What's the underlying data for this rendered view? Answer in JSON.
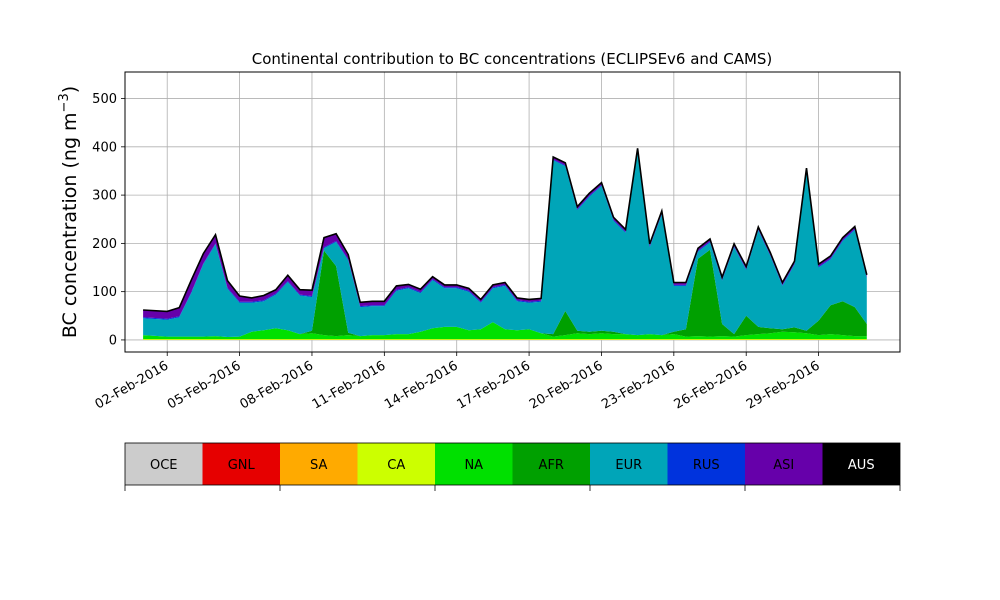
{
  "chart_data": {
    "type": "area",
    "stacked": true,
    "title": "Continental contribution to BC concentrations (ECLIPSEv6 and CAMS)",
    "ylabel": "BC concentration (ng m⁻³)",
    "ylabel_main": "BC concentration (ng m",
    "ylabel_sup": "−3",
    "ylabel_end": ")",
    "xlabel": "",
    "grid": true,
    "xlim": [
      "2016-01-31T06:00",
      "2016-03-03T09:00"
    ],
    "ylim": [
      -25,
      555
    ],
    "x_ticks": [
      "2016-02-02",
      "2016-02-05",
      "2016-02-08",
      "2016-02-11",
      "2016-02-14",
      "2016-02-17",
      "2016-02-20",
      "2016-02-23",
      "2016-02-26",
      "2016-02-29"
    ],
    "x_tick_labels": [
      "02-Feb-2016",
      "05-Feb-2016",
      "08-Feb-2016",
      "11-Feb-2016",
      "14-Feb-2016",
      "17-Feb-2016",
      "20-Feb-2016",
      "23-Feb-2016",
      "26-Feb-2016",
      "29-Feb-2016"
    ],
    "y_ticks": [
      0,
      100,
      200,
      300,
      400,
      500
    ],
    "x": [
      "2016-02-01T00:00",
      "2016-02-02T00:00",
      "2016-02-02T12:00",
      "2016-02-03T00:00",
      "2016-02-03T12:00",
      "2016-02-04T00:00",
      "2016-02-04T12:00",
      "2016-02-05T00:00",
      "2016-02-05T12:00",
      "2016-02-06T00:00",
      "2016-02-06T12:00",
      "2016-02-07T00:00",
      "2016-02-07T12:00",
      "2016-02-08T00:00",
      "2016-02-08T12:00",
      "2016-02-09T00:00",
      "2016-02-09T12:00",
      "2016-02-10T00:00",
      "2016-02-10T12:00",
      "2016-02-11T00:00",
      "2016-02-11T12:00",
      "2016-02-12T00:00",
      "2016-02-12T12:00",
      "2016-02-13T00:00",
      "2016-02-13T12:00",
      "2016-02-14T00:00",
      "2016-02-14T12:00",
      "2016-02-15T00:00",
      "2016-02-15T12:00",
      "2016-02-16T00:00",
      "2016-02-16T12:00",
      "2016-02-17T00:00",
      "2016-02-17T12:00",
      "2016-02-18T00:00",
      "2016-02-18T12:00",
      "2016-02-19T00:00",
      "2016-02-19T12:00",
      "2016-02-20T00:00",
      "2016-02-20T12:00",
      "2016-02-21T00:00",
      "2016-02-21T12:00",
      "2016-02-22T00:00",
      "2016-02-22T12:00",
      "2016-02-23T00:00",
      "2016-02-23T12:00",
      "2016-02-24T00:00",
      "2016-02-24T12:00",
      "2016-02-25T00:00",
      "2016-02-25T12:00",
      "2016-02-26T00:00",
      "2016-02-26T12:00",
      "2016-02-27T00:00",
      "2016-02-27T12:00",
      "2016-02-28T00:00",
      "2016-02-28T12:00",
      "2016-02-29T00:00",
      "2016-02-29T12:00",
      "2016-03-01T00:00",
      "2016-03-01T12:00",
      "2016-03-02T00:00"
    ],
    "series": [
      {
        "name": "OCE",
        "color": "#cccccc",
        "values": [
          0,
          0,
          0,
          0,
          0,
          0,
          0,
          0,
          0,
          0,
          0,
          0,
          0,
          0,
          0,
          0,
          0,
          0,
          0,
          0,
          0,
          0,
          0,
          0,
          0,
          0,
          0,
          0,
          0,
          0,
          0,
          0,
          0,
          0,
          0,
          0,
          0,
          0,
          0,
          0,
          0,
          0,
          0,
          0,
          0,
          0,
          0,
          0,
          0,
          0,
          0,
          0,
          0,
          0,
          0,
          0,
          0,
          0,
          0,
          0
        ]
      },
      {
        "name": "GNL",
        "color": "#e60000",
        "values": [
          0,
          0,
          0,
          0,
          0,
          0,
          0,
          0,
          0,
          0,
          0,
          0,
          0,
          0,
          0,
          0,
          0,
          0,
          0,
          0,
          0,
          0,
          0,
          0,
          0,
          0,
          0,
          0,
          0,
          0,
          0,
          0,
          0,
          0,
          0,
          0,
          0,
          0,
          0,
          0,
          0,
          0,
          0,
          0,
          0,
          0,
          0,
          0,
          0,
          0,
          0,
          0,
          0,
          0,
          0,
          0,
          0,
          0,
          0,
          0
        ]
      },
      {
        "name": "SA",
        "color": "#ffaa00",
        "values": [
          0,
          0,
          0,
          0,
          0,
          0,
          0,
          0,
          0,
          0,
          0,
          0,
          0,
          0,
          0,
          0,
          0,
          0,
          0,
          0,
          0,
          0,
          0,
          0,
          0,
          0,
          0,
          0,
          0,
          0,
          0,
          0,
          0,
          0,
          0,
          0,
          0,
          0,
          0,
          0,
          0,
          0,
          0,
          0,
          0,
          0,
          0,
          0,
          0,
          0,
          0,
          0,
          0,
          0,
          0,
          0,
          0,
          0,
          0,
          0
        ]
      },
      {
        "name": "CA",
        "color": "#ccff00",
        "values": [
          2,
          2,
          2,
          2,
          2,
          2,
          2,
          2,
          2,
          2,
          2,
          2,
          2,
          2,
          2,
          2,
          2,
          2,
          2,
          2,
          2,
          2,
          2,
          2,
          2,
          2,
          2,
          2,
          2,
          2,
          2,
          2,
          2,
          2,
          2,
          2,
          2,
          2,
          2,
          2,
          2,
          2,
          2,
          2,
          2,
          2,
          2,
          2,
          2,
          2,
          2,
          2,
          2,
          2,
          2,
          2,
          2,
          2,
          2,
          2
        ]
      },
      {
        "name": "NA",
        "color": "#00e000",
        "values": [
          8,
          5,
          5,
          5,
          5,
          6,
          4,
          5,
          15,
          18,
          22,
          18,
          10,
          12,
          8,
          6,
          8,
          6,
          8,
          8,
          10,
          10,
          15,
          22,
          25,
          25,
          18,
          20,
          35,
          20,
          18,
          20,
          12,
          5,
          8,
          12,
          10,
          12,
          10,
          10,
          8,
          10,
          8,
          10,
          5,
          6,
          5,
          6,
          5,
          8,
          10,
          12,
          15,
          14,
          12,
          8,
          10,
          8,
          6,
          6
        ]
      },
      {
        "name": "AFR",
        "color": "#00a000",
        "values": [
          0,
          0,
          0,
          0,
          0,
          0,
          0,
          0,
          0,
          0,
          0,
          0,
          0,
          5,
          175,
          145,
          5,
          0,
          0,
          0,
          0,
          0,
          0,
          0,
          0,
          0,
          0,
          0,
          0,
          0,
          0,
          0,
          0,
          5,
          50,
          5,
          5,
          5,
          5,
          0,
          0,
          0,
          0,
          5,
          15,
          160,
          180,
          25,
          5,
          40,
          15,
          10,
          5,
          10,
          5,
          30,
          60,
          70,
          60,
          25
        ]
      },
      {
        "name": "EUR",
        "color": "#00a5b8",
        "values": [
          35,
          35,
          40,
          90,
          150,
          190,
          100,
          70,
          60,
          60,
          70,
          100,
          80,
          70,
          5,
          50,
          150,
          60,
          60,
          60,
          90,
          95,
          80,
          100,
          80,
          80,
          80,
          55,
          70,
          90,
          60,
          55,
          65,
          360,
          300,
          250,
          280,
          300,
          230,
          210,
          380,
          180,
          250,
          95,
          90,
          15,
          15,
          90,
          180,
          95,
          200,
          150,
          90,
          130,
          330,
          110,
          95,
          125,
          160,
          95
        ]
      },
      {
        "name": "RUS",
        "color": "#0033dd",
        "values": [
          2,
          2,
          2,
          2,
          2,
          2,
          2,
          2,
          2,
          2,
          2,
          2,
          2,
          2,
          2,
          2,
          2,
          2,
          2,
          2,
          2,
          2,
          2,
          2,
          2,
          2,
          2,
          2,
          2,
          2,
          2,
          2,
          2,
          2,
          2,
          2,
          2,
          2,
          2,
          2,
          2,
          2,
          2,
          2,
          2,
          2,
          2,
          2,
          2,
          2,
          2,
          2,
          2,
          2,
          2,
          2,
          2,
          2,
          2,
          2
        ]
      },
      {
        "name": "ASI",
        "color": "#6600aa",
        "values": [
          15,
          15,
          18,
          25,
          20,
          18,
          15,
          12,
          8,
          10,
          8,
          12,
          10,
          12,
          20,
          15,
          10,
          8,
          8,
          8,
          8,
          6,
          6,
          5,
          5,
          5,
          5,
          5,
          5,
          5,
          5,
          5,
          5,
          5,
          5,
          5,
          5,
          5,
          5,
          5,
          5,
          5,
          5,
          5,
          5,
          5,
          5,
          5,
          5,
          5,
          5,
          5,
          5,
          5,
          5,
          5,
          5,
          5,
          5,
          5
        ]
      },
      {
        "name": "AUS",
        "color": "#000000",
        "values": [
          0,
          0,
          0,
          0,
          0,
          0,
          0,
          0,
          0,
          0,
          0,
          0,
          0,
          0,
          0,
          0,
          0,
          0,
          0,
          0,
          0,
          0,
          0,
          0,
          0,
          0,
          0,
          0,
          0,
          0,
          0,
          0,
          0,
          0,
          0,
          0,
          0,
          0,
          0,
          0,
          0,
          0,
          0,
          0,
          0,
          0,
          0,
          0,
          0,
          0,
          0,
          0,
          0,
          0,
          0,
          0,
          0,
          0,
          0,
          0
        ]
      }
    ]
  },
  "legend": {
    "items": [
      {
        "label": "OCE",
        "color": "#cccccc",
        "text_color": "#000000"
      },
      {
        "label": "GNL",
        "color": "#e60000",
        "text_color": "#000000"
      },
      {
        "label": "SA",
        "color": "#ffaa00",
        "text_color": "#000000"
      },
      {
        "label": "CA",
        "color": "#ccff00",
        "text_color": "#000000"
      },
      {
        "label": "NA",
        "color": "#00e000",
        "text_color": "#000000"
      },
      {
        "label": "AFR",
        "color": "#00a000",
        "text_color": "#000000"
      },
      {
        "label": "EUR",
        "color": "#00a5b8",
        "text_color": "#000000"
      },
      {
        "label": "RUS",
        "color": "#0033dd",
        "text_color": "#000000"
      },
      {
        "label": "ASI",
        "color": "#6600aa",
        "text_color": "#000000"
      },
      {
        "label": "AUS",
        "color": "#000000",
        "text_color": "#ffffff"
      }
    ]
  }
}
